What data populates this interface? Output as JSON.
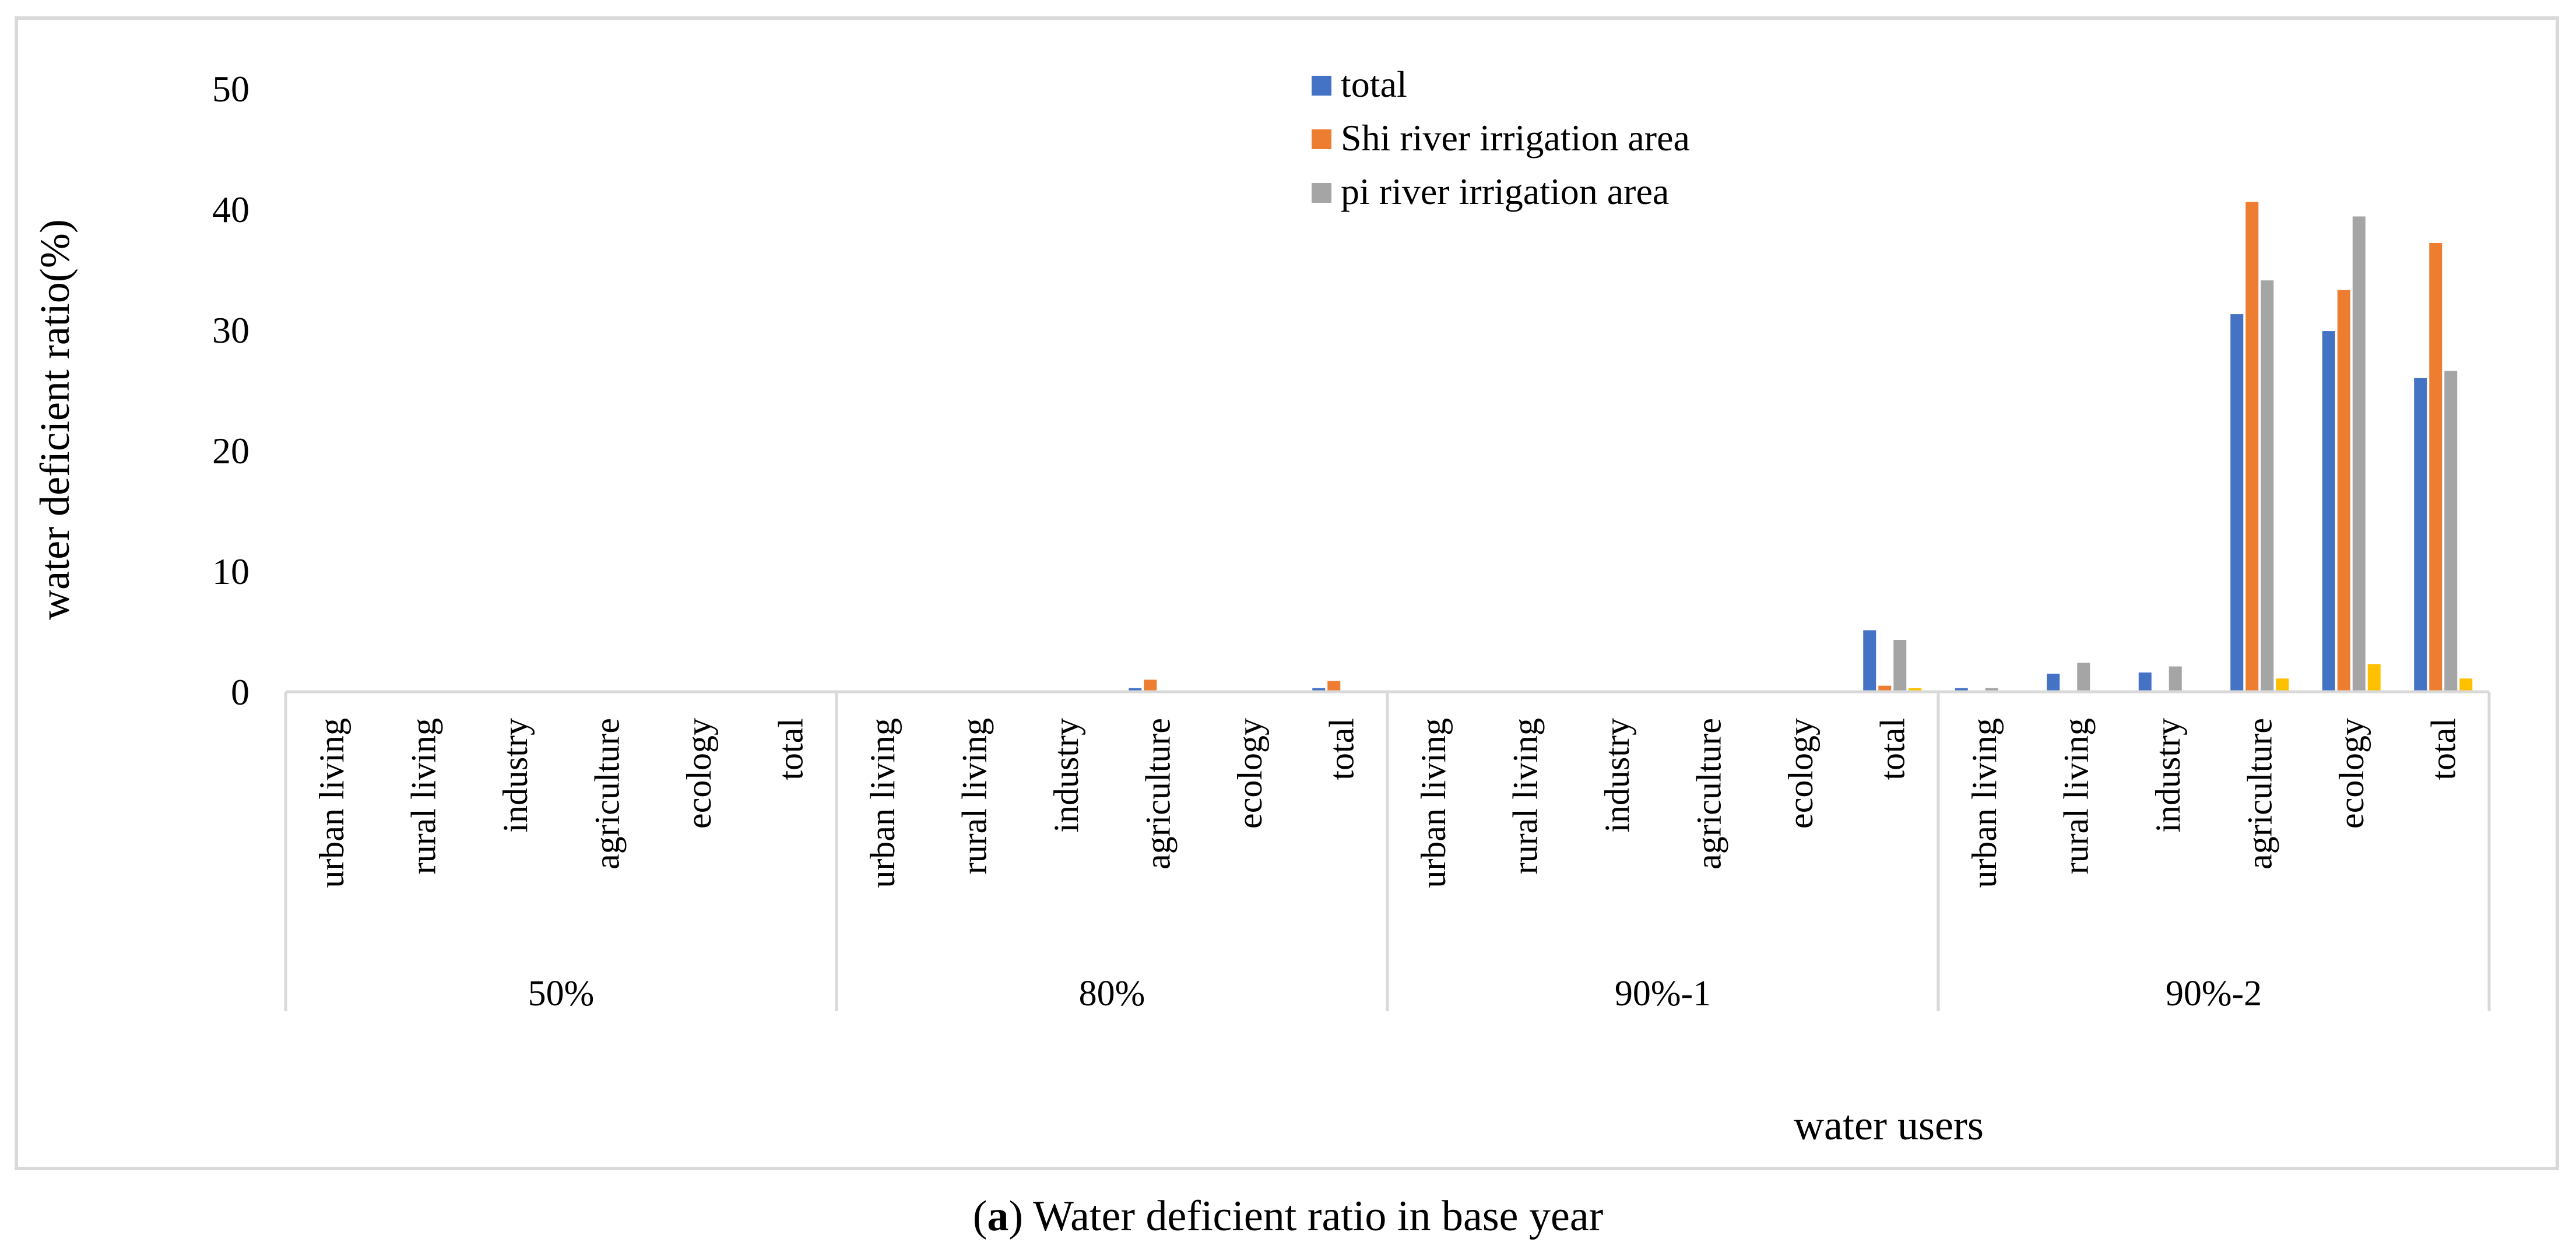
{
  "caption": {
    "prefix": "(",
    "letter": "a",
    "text": ") Water deficient ratio in base year"
  },
  "chart_data": {
    "type": "bar",
    "ylabel": "water deficient ratio(%)",
    "xlabel": "water users",
    "ylim": [
      0,
      50
    ],
    "yticks": [
      0,
      10,
      20,
      30,
      40,
      50
    ],
    "legend_position": "top-center",
    "groups": [
      "50%",
      "80%",
      "90%-1",
      "90%-2"
    ],
    "categories": [
      "urban living",
      "rural living",
      "industry",
      "agriculture",
      "ecology",
      "total"
    ],
    "series": [
      {
        "name": "total",
        "color": "#4472c4",
        "in_legend": true,
        "values": [
          [
            0,
            0,
            0,
            0,
            0,
            0
          ],
          [
            0,
            0,
            0,
            0.3,
            0,
            0.3
          ],
          [
            0,
            0,
            0,
            0,
            0,
            5.1
          ],
          [
            0.3,
            1.5,
            1.6,
            31.3,
            29.9,
            26.0
          ]
        ]
      },
      {
        "name": "Shi river irrigation area",
        "color": "#ed7d31",
        "in_legend": true,
        "values": [
          [
            0,
            0,
            0,
            0,
            0,
            0
          ],
          [
            0,
            0,
            0,
            1.0,
            0,
            0.9
          ],
          [
            0,
            0,
            0,
            0,
            0,
            0.5
          ],
          [
            0,
            0,
            0,
            40.6,
            33.3,
            37.2
          ]
        ]
      },
      {
        "name": "pi river irrigation area",
        "color": "#a5a5a5",
        "in_legend": true,
        "values": [
          [
            0,
            0,
            0,
            0,
            0,
            0
          ],
          [
            0,
            0,
            0,
            0,
            0,
            0
          ],
          [
            0,
            0,
            0,
            0,
            0,
            4.3
          ],
          [
            0.3,
            2.4,
            2.1,
            34.1,
            39.4,
            26.6
          ]
        ]
      },
      {
        "name": "",
        "color": "#ffc000",
        "in_legend": false,
        "values": [
          [
            0,
            0,
            0,
            0,
            0,
            0
          ],
          [
            0,
            0,
            0,
            0,
            0,
            0
          ],
          [
            0,
            0,
            0,
            0,
            0,
            0.3
          ],
          [
            0,
            0,
            0,
            1.1,
            2.3,
            1.1
          ]
        ]
      }
    ]
  }
}
